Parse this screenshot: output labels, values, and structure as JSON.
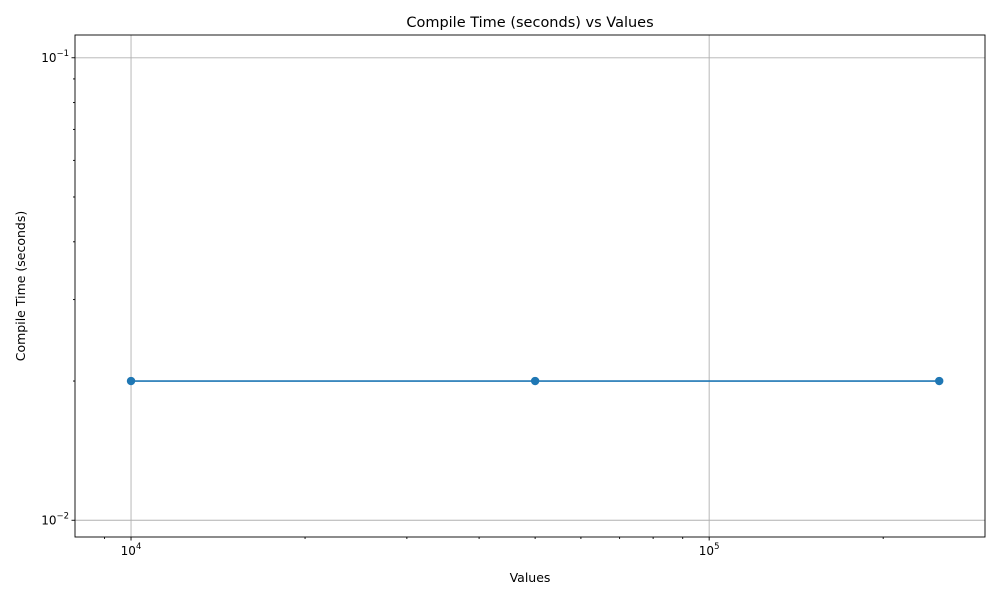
{
  "chart_data": {
    "type": "line",
    "title": "Compile Time (seconds) vs Values",
    "xlabel": "Values",
    "ylabel": "Compile Time (seconds)",
    "x_scale": "log",
    "y_scale": "log",
    "xlim": [
      8000,
      300000
    ],
    "ylim": [
      0.0092,
      0.112
    ],
    "x_ticks": [
      {
        "value": 10000,
        "base": "10",
        "exp": "4"
      },
      {
        "value": 100000,
        "base": "10",
        "exp": "5"
      }
    ],
    "y_ticks": [
      {
        "value": 0.01,
        "base": "10",
        "exp": "−2"
      },
      {
        "value": 0.1,
        "base": "10",
        "exp": "−1"
      }
    ],
    "grid": true,
    "series": [
      {
        "color": "#1f77b4",
        "marker": "circle",
        "x": [
          10000,
          50000,
          250000
        ],
        "y": [
          0.02,
          0.02,
          0.02
        ]
      }
    ]
  }
}
